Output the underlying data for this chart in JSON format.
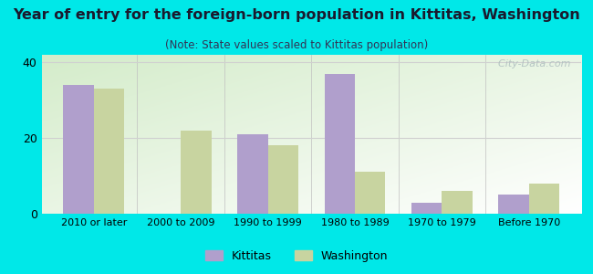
{
  "title": "Year of entry for the foreign-born population in Kittitas, Washington",
  "subtitle": "(Note: State values scaled to Kittitas population)",
  "categories": [
    "2010 or later",
    "2000 to 2009",
    "1990 to 1999",
    "1980 to 1989",
    "1970 to 1979",
    "Before 1970"
  ],
  "kittitas": [
    34,
    0,
    21,
    37,
    3,
    5
  ],
  "washington": [
    33,
    22,
    18,
    11,
    6,
    8
  ],
  "kittitas_color": "#b09fcc",
  "washington_color": "#c8d4a0",
  "bar_width": 0.35,
  "ylim": [
    0,
    42
  ],
  "yticks": [
    0,
    20,
    40
  ],
  "bg_outer": "#00e8e8",
  "title_fontsize": 11.5,
  "subtitle_fontsize": 8.5,
  "legend_kittitas": "Kittitas",
  "legend_washington": "Washington",
  "watermark": "  City-Data.com"
}
